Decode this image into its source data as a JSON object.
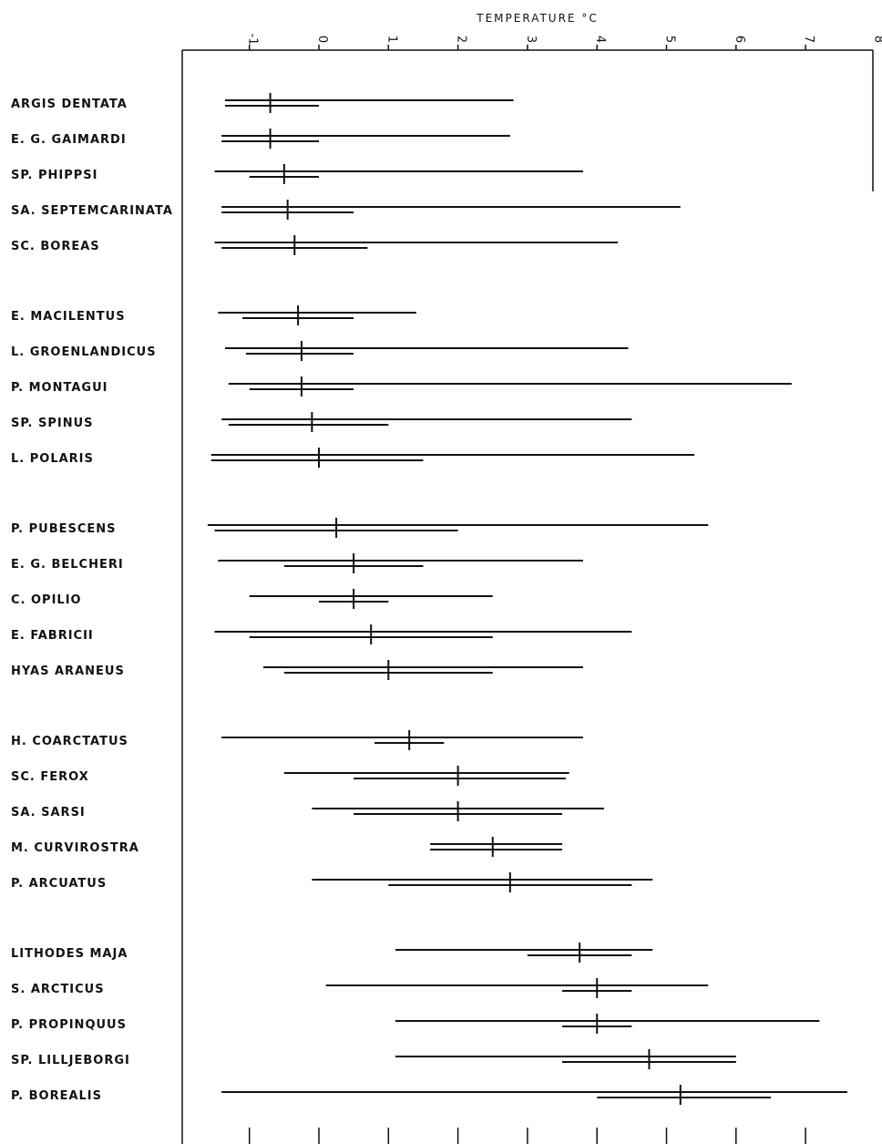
{
  "chart_data": {
    "type": "range",
    "title": "TEMPERATURE °C",
    "x_ticks": [
      "-1",
      "0",
      "1",
      "2",
      "3",
      "4",
      "5",
      "6",
      "7",
      "8"
    ],
    "xlim": [
      -2,
      8
    ],
    "species": [
      {
        "name": "ARGIS DENTATA",
        "mean": -0.7,
        "full": [
          -1.35,
          2.8
        ],
        "inner": [
          -1.35,
          0.0
        ],
        "group": 1
      },
      {
        "name": "E. G. GAIMARDI",
        "mean": -0.7,
        "full": [
          -1.4,
          2.75
        ],
        "inner": [
          -1.4,
          0.0
        ],
        "group": 1
      },
      {
        "name": "SP. PHIPPSI",
        "mean": -0.5,
        "full": [
          -1.5,
          3.8
        ],
        "inner": [
          -1.0,
          0.0
        ],
        "group": 1
      },
      {
        "name": "SA. SEPTEMCARINATA",
        "mean": -0.45,
        "full": [
          -1.4,
          5.2
        ],
        "inner": [
          -1.4,
          0.5
        ],
        "group": 1
      },
      {
        "name": "SC. BOREAS",
        "mean": -0.35,
        "full": [
          -1.5,
          4.3
        ],
        "inner": [
          -1.4,
          0.7
        ],
        "group": 1
      },
      {
        "name": "E. MACILENTUS",
        "mean": -0.3,
        "full": [
          -1.45,
          1.4
        ],
        "inner": [
          -1.1,
          0.5
        ],
        "group": 2
      },
      {
        "name": "L. GROENLANDICUS",
        "mean": -0.25,
        "full": [
          -1.35,
          4.45
        ],
        "inner": [
          -1.05,
          0.5
        ],
        "group": 2
      },
      {
        "name": "P. MONTAGUI",
        "mean": -0.25,
        "full": [
          -1.3,
          6.8
        ],
        "inner": [
          -1.0,
          0.5
        ],
        "group": 2
      },
      {
        "name": "SP. SPINUS",
        "mean": -0.1,
        "full": [
          -1.4,
          4.5
        ],
        "inner": [
          -1.3,
          1.0
        ],
        "group": 2
      },
      {
        "name": "L. POLARIS",
        "mean": 0.0,
        "full": [
          -1.55,
          5.4
        ],
        "inner": [
          -1.55,
          1.5
        ],
        "group": 2
      },
      {
        "name": "P. PUBESCENS",
        "mean": 0.25,
        "full": [
          -1.6,
          5.6
        ],
        "inner": [
          -1.5,
          2.0
        ],
        "group": 3
      },
      {
        "name": "E. G. BELCHERI",
        "mean": 0.5,
        "full": [
          -1.45,
          3.8
        ],
        "inner": [
          -0.5,
          1.5
        ],
        "group": 3
      },
      {
        "name": "C. OPILIO",
        "mean": 0.5,
        "full": [
          -1.0,
          2.5
        ],
        "inner": [
          0.0,
          1.0
        ],
        "group": 3
      },
      {
        "name": "E. FABRICII",
        "mean": 0.75,
        "full": [
          -1.5,
          4.5
        ],
        "inner": [
          -1.0,
          2.5
        ],
        "group": 3
      },
      {
        "name": "HYAS ARANEUS",
        "mean": 1.0,
        "full": [
          -0.8,
          3.8
        ],
        "inner": [
          -0.5,
          2.5
        ],
        "group": 3
      },
      {
        "name": "H. COARCTATUS",
        "mean": 1.3,
        "full": [
          -1.4,
          3.8
        ],
        "inner": [
          0.8,
          1.8
        ],
        "group": 4
      },
      {
        "name": "SC. FEROX",
        "mean": 2.0,
        "full": [
          -0.5,
          3.6
        ],
        "inner": [
          0.5,
          3.55
        ],
        "group": 4
      },
      {
        "name": "SA. SARSI",
        "mean": 2.0,
        "full": [
          -0.1,
          4.1
        ],
        "inner": [
          0.5,
          3.5
        ],
        "group": 4
      },
      {
        "name": "M. CURVIROSTRA",
        "mean": 2.5,
        "full": [
          1.6,
          3.5
        ],
        "inner": [
          1.6,
          3.5
        ],
        "group": 4
      },
      {
        "name": "P. ARCUATUS",
        "mean": 2.75,
        "full": [
          -0.1,
          4.8
        ],
        "inner": [
          1.0,
          4.5
        ],
        "group": 4
      },
      {
        "name": "LITHODES MAJA",
        "mean": 3.75,
        "full": [
          1.1,
          4.8
        ],
        "inner": [
          3.0,
          4.5
        ],
        "group": 5
      },
      {
        "name": "S. ARCTICUS",
        "mean": 4.0,
        "full": [
          0.1,
          5.6
        ],
        "inner": [
          3.5,
          4.5
        ],
        "group": 5
      },
      {
        "name": "P. PROPINQUUS",
        "mean": 4.0,
        "full": [
          1.1,
          7.2
        ],
        "inner": [
          3.5,
          4.5
        ],
        "group": 5
      },
      {
        "name": "SP. LILLJEBORGI",
        "mean": 4.75,
        "full": [
          1.1,
          6.0
        ],
        "inner": [
          3.5,
          6.0
        ],
        "group": 5
      },
      {
        "name": "P. BOREALIS",
        "mean": 5.2,
        "full": [
          -1.4,
          7.6
        ],
        "inner": [
          4.0,
          6.5
        ],
        "group": 5
      }
    ]
  }
}
